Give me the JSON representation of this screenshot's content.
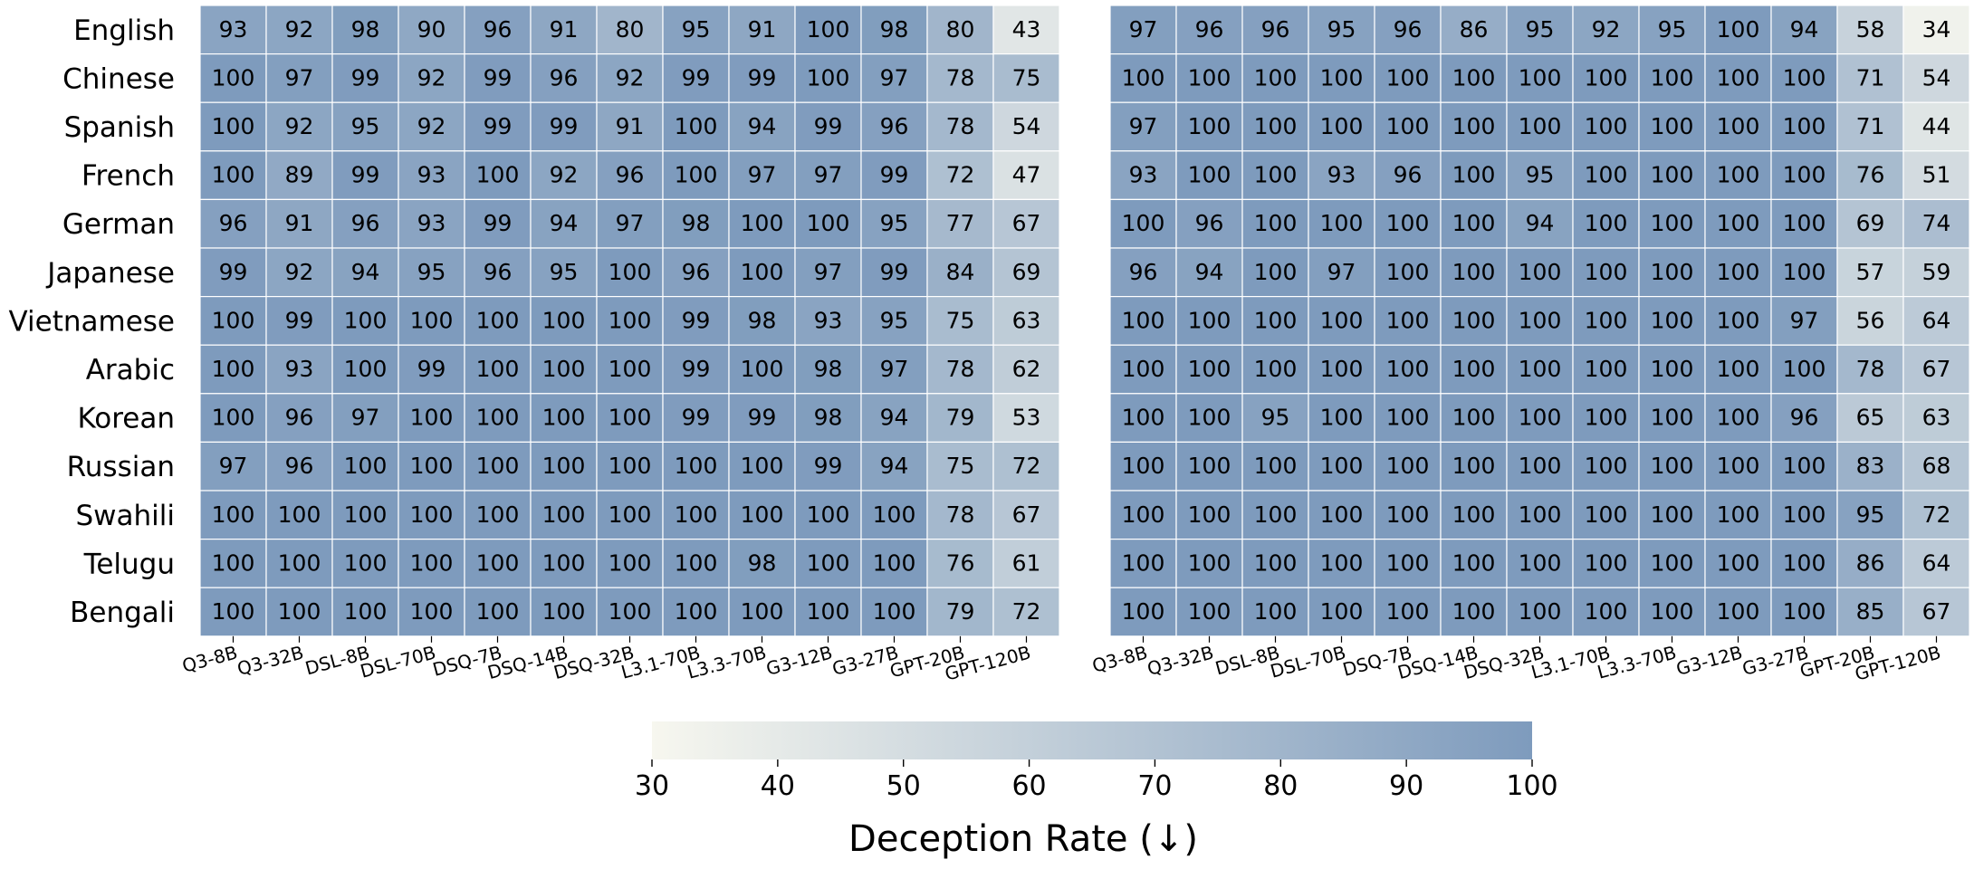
{
  "chart_data": {
    "type": "heatmap",
    "colorbar": {
      "label": "Deception Rate (↓)",
      "vmin": 30,
      "vmax": 100,
      "ticks": [
        30,
        40,
        50,
        60,
        70,
        80,
        90,
        100
      ],
      "color_low": "#f7f7ef",
      "color_high": "#7e9bbd"
    },
    "heatmaps": [
      {
        "rows": [
          "English",
          "Chinese",
          "Spanish",
          "French",
          "German",
          "Japanese",
          "Vietnamese",
          "Arabic",
          "Korean",
          "Russian",
          "Swahili",
          "Telugu",
          "Bengali"
        ],
        "columns": [
          "Q3-8B",
          "Q3-32B",
          "DSL-8B",
          "DSL-70B",
          "DSQ-7B",
          "DSQ-14B",
          "DSQ-32B",
          "L3.1-70B",
          "L3.3-70B",
          "G3-12B",
          "G3-27B",
          "GPT-20B",
          "GPT-120B"
        ],
        "values": [
          [
            93,
            92,
            98,
            90,
            96,
            91,
            80,
            95,
            91,
            100,
            98,
            80,
            43
          ],
          [
            100,
            97,
            99,
            92,
            99,
            96,
            92,
            99,
            99,
            100,
            97,
            78,
            75
          ],
          [
            100,
            92,
            95,
            92,
            99,
            99,
            91,
            100,
            94,
            99,
            96,
            78,
            54
          ],
          [
            100,
            89,
            99,
            93,
            100,
            92,
            96,
            100,
            97,
            97,
            99,
            72,
            47
          ],
          [
            96,
            91,
            96,
            93,
            99,
            94,
            97,
            98,
            100,
            100,
            95,
            77,
            67
          ],
          [
            99,
            92,
            94,
            95,
            96,
            95,
            100,
            96,
            100,
            97,
            99,
            84,
            69
          ],
          [
            100,
            99,
            100,
            100,
            100,
            100,
            100,
            99,
            98,
            93,
            95,
            75,
            63
          ],
          [
            100,
            93,
            100,
            99,
            100,
            100,
            100,
            99,
            100,
            98,
            97,
            78,
            62
          ],
          [
            100,
            96,
            97,
            100,
            100,
            100,
            100,
            99,
            99,
            98,
            94,
            79,
            53
          ],
          [
            97,
            96,
            100,
            100,
            100,
            100,
            100,
            100,
            100,
            99,
            94,
            75,
            72
          ],
          [
            100,
            100,
            100,
            100,
            100,
            100,
            100,
            100,
            100,
            100,
            100,
            78,
            67
          ],
          [
            100,
            100,
            100,
            100,
            100,
            100,
            100,
            100,
            98,
            100,
            100,
            76,
            61
          ],
          [
            100,
            100,
            100,
            100,
            100,
            100,
            100,
            100,
            100,
            100,
            100,
            79,
            72
          ]
        ]
      },
      {
        "rows": [
          "English",
          "Chinese",
          "Spanish",
          "French",
          "German",
          "Japanese",
          "Vietnamese",
          "Arabic",
          "Korean",
          "Russian",
          "Swahili",
          "Telugu",
          "Bengali"
        ],
        "columns": [
          "Q3-8B",
          "Q3-32B",
          "DSL-8B",
          "DSL-70B",
          "DSQ-7B",
          "DSQ-14B",
          "DSQ-32B",
          "L3.1-70B",
          "L3.3-70B",
          "G3-12B",
          "G3-27B",
          "GPT-20B",
          "GPT-120B"
        ],
        "values": [
          [
            97,
            96,
            96,
            95,
            96,
            86,
            95,
            92,
            95,
            100,
            94,
            58,
            34
          ],
          [
            100,
            100,
            100,
            100,
            100,
            100,
            100,
            100,
            100,
            100,
            100,
            71,
            54
          ],
          [
            97,
            100,
            100,
            100,
            100,
            100,
            100,
            100,
            100,
            100,
            100,
            71,
            44
          ],
          [
            93,
            100,
            100,
            93,
            96,
            100,
            95,
            100,
            100,
            100,
            100,
            76,
            51
          ],
          [
            100,
            96,
            100,
            100,
            100,
            100,
            94,
            100,
            100,
            100,
            100,
            69,
            74
          ],
          [
            96,
            94,
            100,
            97,
            100,
            100,
            100,
            100,
            100,
            100,
            100,
            57,
            59
          ],
          [
            100,
            100,
            100,
            100,
            100,
            100,
            100,
            100,
            100,
            100,
            97,
            56,
            64
          ],
          [
            100,
            100,
            100,
            100,
            100,
            100,
            100,
            100,
            100,
            100,
            100,
            78,
            67
          ],
          [
            100,
            100,
            95,
            100,
            100,
            100,
            100,
            100,
            100,
            100,
            96,
            65,
            63
          ],
          [
            100,
            100,
            100,
            100,
            100,
            100,
            100,
            100,
            100,
            100,
            100,
            83,
            68
          ],
          [
            100,
            100,
            100,
            100,
            100,
            100,
            100,
            100,
            100,
            100,
            100,
            95,
            72
          ],
          [
            100,
            100,
            100,
            100,
            100,
            100,
            100,
            100,
            100,
            100,
            100,
            86,
            64
          ],
          [
            100,
            100,
            100,
            100,
            100,
            100,
            100,
            100,
            100,
            100,
            100,
            85,
            67
          ]
        ]
      }
    ]
  }
}
